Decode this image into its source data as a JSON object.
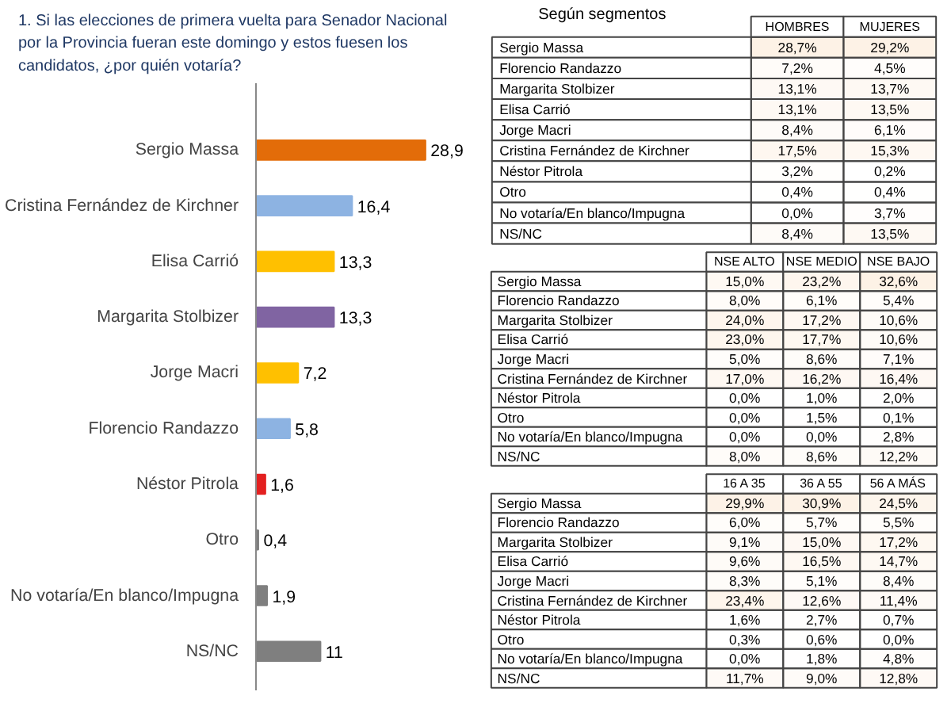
{
  "chart_data": [
    {
      "type": "bar",
      "orientation": "horizontal",
      "title": "1. Si las elecciones de primera vuelta para Senador Nacional por la Provincia fueran este domingo y estos fuesen los candidatos, ¿por quién votaría?",
      "tick_labels": "y",
      "grid": false,
      "categories": [
        "Sergio Massa",
        "Cristina Fernández de Kirchner",
        "Elisa Carrió",
        "Margarita Stolbizer",
        "Jorge Macri",
        "Florencio Randazzo",
        "Néstor Pitrola",
        "Otro",
        "No votaría/En blanco/Impugna",
        "NS/NC"
      ],
      "values": [
        28.9,
        16.4,
        13.3,
        13.3,
        7.2,
        5.8,
        1.6,
        0.4,
        1.9,
        11
      ],
      "value_labels": [
        "28,9",
        "16,4",
        "13,3",
        "13,3",
        "7,2",
        "5,8",
        "1,6",
        "0,4",
        "1,9",
        "11"
      ],
      "colors": [
        "#e36c09",
        "#8db3e2",
        "#ffc000",
        "#8064a2",
        "#ffc000",
        "#8db3e2",
        "#e32020",
        "#7f7f7f",
        "#7f7f7f",
        "#7f7f7f"
      ]
    },
    {
      "type": "heatmap",
      "title": "Según segmentos",
      "categories": [
        "HOMBRES",
        "MUJERES"
      ],
      "y_categories": [
        "Sergio Massa",
        "Florencio Randazzo",
        "Margarita Stolbizer",
        "Elisa Carrió",
        "Jorge Macri",
        "Cristina Fernández de Kirchner",
        "Néstor Pitrola",
        "Otro",
        "No votaría/En blanco/Impugna",
        "NS/NC"
      ],
      "cells": [
        [
          28.7,
          29.2
        ],
        [
          7.2,
          4.5
        ],
        [
          13.1,
          13.7
        ],
        [
          13.1,
          13.5
        ],
        [
          8.4,
          6.1
        ],
        [
          17.5,
          15.3
        ],
        [
          3.2,
          0.2
        ],
        [
          0.4,
          0.4
        ],
        [
          0.0,
          3.7
        ],
        [
          8.4,
          13.5
        ]
      ],
      "cell_labels": [
        [
          "28,7%",
          "29,2%"
        ],
        [
          "7,2%",
          "4,5%"
        ],
        [
          "13,1%",
          "13,7%"
        ],
        [
          "13,1%",
          "13,5%"
        ],
        [
          "8,4%",
          "6,1%"
        ],
        [
          "17,5%",
          "15,3%"
        ],
        [
          "3,2%",
          "0,2%"
        ],
        [
          "0,4%",
          "0,4%"
        ],
        [
          "0,0%",
          "3,7%"
        ],
        [
          "8,4%",
          "13,5%"
        ]
      ]
    },
    {
      "type": "heatmap",
      "categories": [
        "NSE ALTO",
        "NSE MEDIO",
        "NSE BAJO"
      ],
      "y_categories": [
        "Sergio Massa",
        "Florencio Randazzo",
        "Margarita Stolbizer",
        "Elisa Carrió",
        "Jorge Macri",
        "Cristina Fernández de Kirchner",
        "Néstor Pitrola",
        "Otro",
        "No votaría/En blanco/Impugna",
        "NS/NC"
      ],
      "cells": [
        [
          15.0,
          23.2,
          32.6
        ],
        [
          8.0,
          6.1,
          5.4
        ],
        [
          24.0,
          17.2,
          10.6
        ],
        [
          23.0,
          17.7,
          10.6
        ],
        [
          5.0,
          8.6,
          7.1
        ],
        [
          17.0,
          16.2,
          16.4
        ],
        [
          0.0,
          1.0,
          2.0
        ],
        [
          0.0,
          1.5,
          0.1
        ],
        [
          0.0,
          0.0,
          2.8
        ],
        [
          8.0,
          8.6,
          12.2
        ]
      ],
      "cell_labels": [
        [
          "15,0%",
          "23,2%",
          "32,6%"
        ],
        [
          "8,0%",
          "6,1%",
          "5,4%"
        ],
        [
          "24,0%",
          "17,2%",
          "10,6%"
        ],
        [
          "23,0%",
          "17,7%",
          "10,6%"
        ],
        [
          "5,0%",
          "8,6%",
          "7,1%"
        ],
        [
          "17,0%",
          "16,2%",
          "16,4%"
        ],
        [
          "0,0%",
          "1,0%",
          "2,0%"
        ],
        [
          "0,0%",
          "1,5%",
          "0,1%"
        ],
        [
          "0,0%",
          "0,0%",
          "2,8%"
        ],
        [
          "8,0%",
          "8,6%",
          "12,2%"
        ]
      ]
    },
    {
      "type": "heatmap",
      "categories": [
        "16 A 35",
        "36 A 55",
        "56 A MÁS"
      ],
      "y_categories": [
        "Sergio Massa",
        "Florencio Randazzo",
        "Margarita Stolbizer",
        "Elisa Carrió",
        "Jorge Macri",
        "Cristina Fernández de Kirchner",
        "Néstor Pitrola",
        "Otro",
        "No votaría/En blanco/Impugna",
        "NS/NC"
      ],
      "cells": [
        [
          29.9,
          30.9,
          24.5
        ],
        [
          6.0,
          5.7,
          5.5
        ],
        [
          9.1,
          15.0,
          17.2
        ],
        [
          9.6,
          16.5,
          14.7
        ],
        [
          8.3,
          5.1,
          8.4
        ],
        [
          23.4,
          12.6,
          11.4
        ],
        [
          1.6,
          2.7,
          0.7
        ],
        [
          0.3,
          0.6,
          0.0
        ],
        [
          0.0,
          1.8,
          4.8
        ],
        [
          11.7,
          9.0,
          12.8
        ]
      ],
      "cell_labels": [
        [
          "29,9%",
          "30,9%",
          "24,5%"
        ],
        [
          "6,0%",
          "5,7%",
          "5,5%"
        ],
        [
          "9,1%",
          "15,0%",
          "17,2%"
        ],
        [
          "9,6%",
          "16,5%",
          "14,7%"
        ],
        [
          "8,3%",
          "5,1%",
          "8,4%"
        ],
        [
          "23,4%",
          "12,6%",
          "11,4%"
        ],
        [
          "1,6%",
          "2,7%",
          "0,7%"
        ],
        [
          "0,3%",
          "0,6%",
          "0,0%"
        ],
        [
          "0,0%",
          "1,8%",
          "4,8%"
        ],
        [
          "11,7%",
          "9,0%",
          "12,8%"
        ]
      ]
    }
  ]
}
